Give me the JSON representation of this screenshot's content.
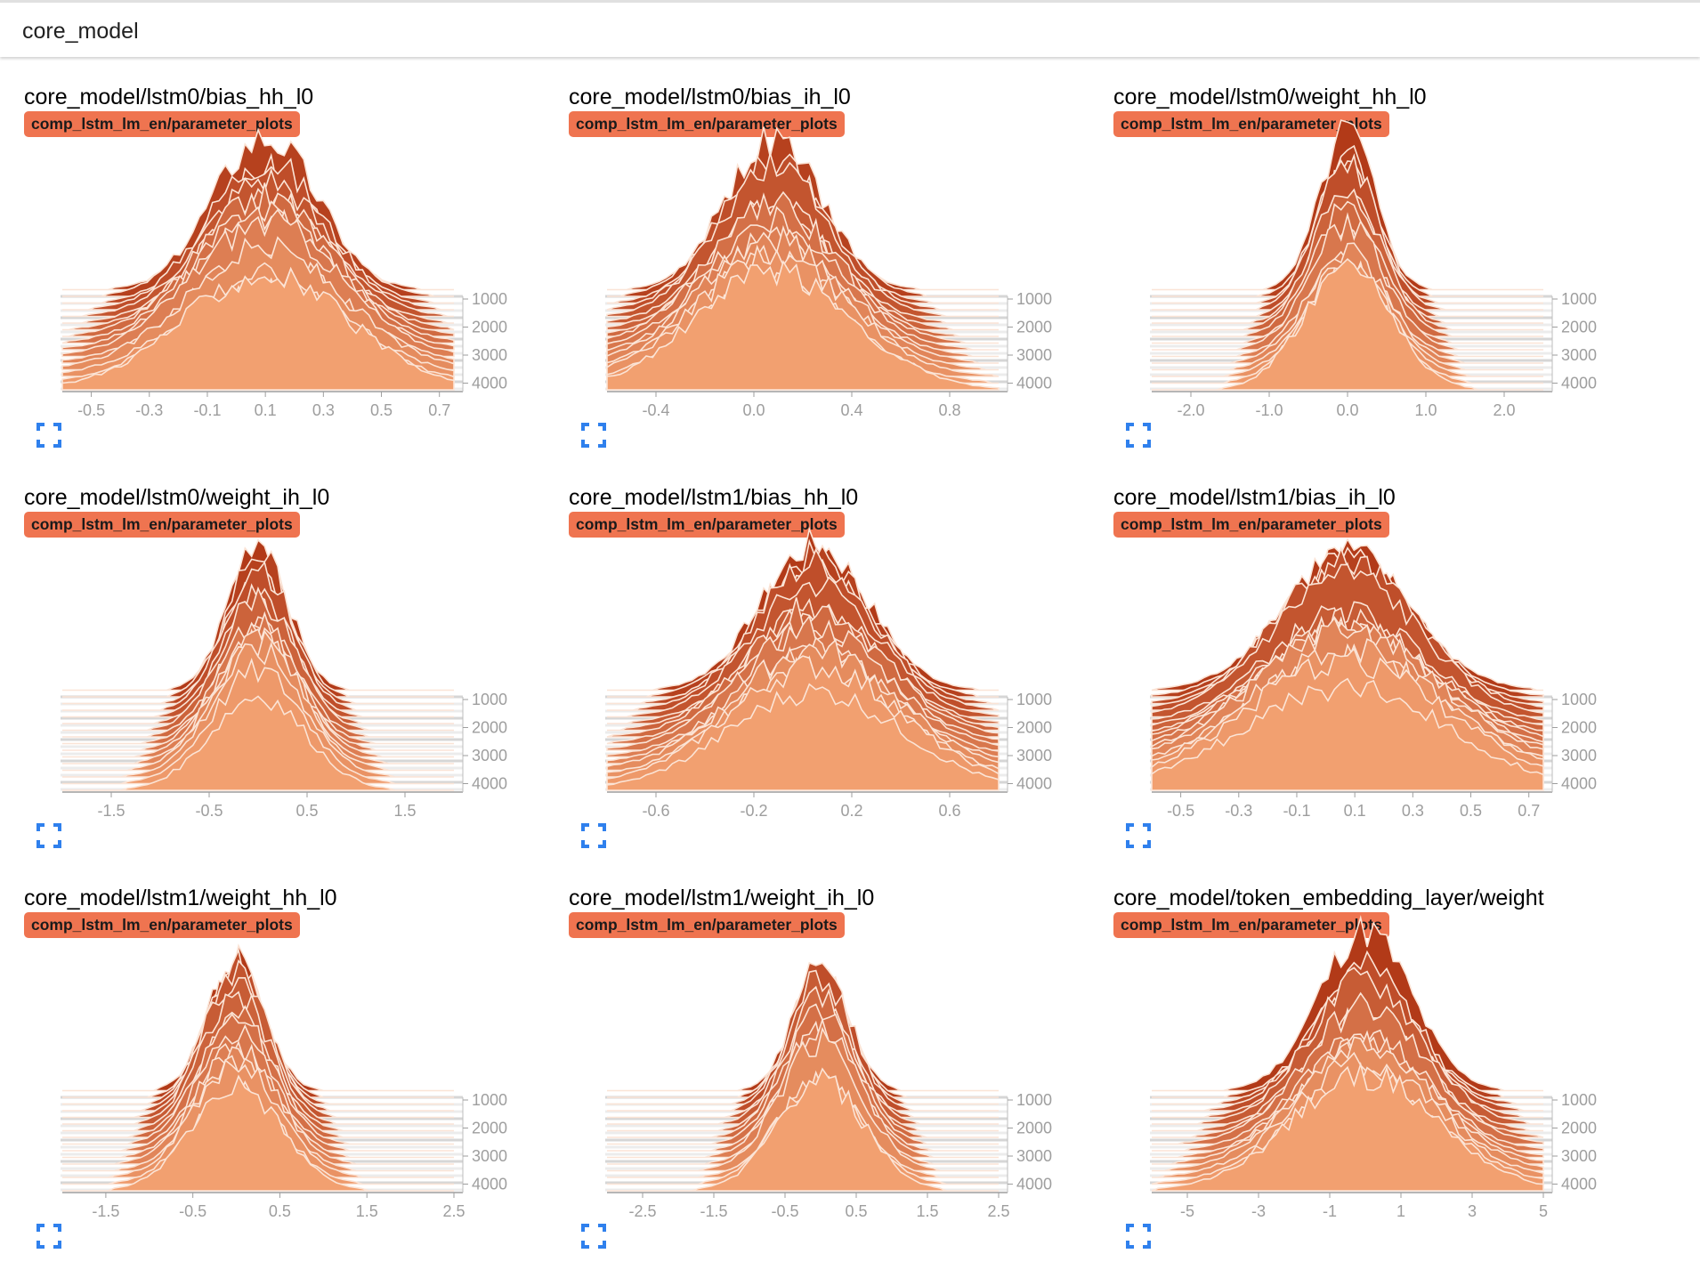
{
  "header": {
    "title": "core_model"
  },
  "icons": {
    "expand": "fullscreen-icon"
  },
  "colors": {
    "tag": "#ef7450",
    "ridge_dark": "#b23a18",
    "ridge_light": "#f2a070",
    "ridge_outline": "#fbe4d6",
    "axis": "#9e9e9e"
  },
  "charts": [
    {
      "title": "core_model/lstm0/bias_hh_l0",
      "tag": "comp_lstm_lm_en/parameter_plots",
      "chart_data": {
        "type": "area",
        "xlabels": [
          "-0.5",
          "-0.3",
          "-0.1",
          "0.1",
          "0.3",
          "0.5",
          "0.7"
        ],
        "xlim": [
          -0.6,
          0.75
        ],
        "steps": [
          "1000",
          "2000",
          "3000",
          "4000"
        ],
        "peak": 0.1,
        "spread": 0.18
      }
    },
    {
      "title": "core_model/lstm0/bias_ih_l0",
      "tag": "comp_lstm_lm_en/parameter_plots",
      "chart_data": {
        "type": "area",
        "xlabels": [
          "-0.4",
          "0.0",
          "0.4",
          "0.8"
        ],
        "xlim": [
          -0.6,
          1.0
        ],
        "steps": [
          "1000",
          "2000",
          "3000",
          "4000"
        ],
        "peak": 0.08,
        "spread": 0.2
      }
    },
    {
      "title": "core_model/lstm0/weight_hh_l0",
      "tag": "comp_lstm_lm_en/parameter_plots",
      "chart_data": {
        "type": "area",
        "xlabels": [
          "-2.0",
          "-1.0",
          "0.0",
          "1.0",
          "2.0"
        ],
        "xlim": [
          -2.5,
          2.5
        ],
        "steps": [
          "1000",
          "2000",
          "3000",
          "4000"
        ],
        "peak": 0.0,
        "spread": 0.35
      }
    },
    {
      "title": "core_model/lstm0/weight_ih_l0",
      "tag": "comp_lstm_lm_en/parameter_plots",
      "chart_data": {
        "type": "area",
        "xlabels": [
          "-1.5",
          "-0.5",
          "0.5",
          "1.5"
        ],
        "xlim": [
          -2.0,
          2.0
        ],
        "steps": [
          "1000",
          "2000",
          "3000",
          "4000"
        ],
        "peak": 0.0,
        "spread": 0.3
      }
    },
    {
      "title": "core_model/lstm1/bias_hh_l0",
      "tag": "comp_lstm_lm_en/parameter_plots",
      "chart_data": {
        "type": "area",
        "xlabels": [
          "-0.6",
          "-0.2",
          "0.2",
          "0.6"
        ],
        "xlim": [
          -0.8,
          0.8
        ],
        "steps": [
          "1000",
          "2000",
          "3000",
          "4000"
        ],
        "peak": 0.05,
        "spread": 0.22
      }
    },
    {
      "title": "core_model/lstm1/bias_ih_l0",
      "tag": "comp_lstm_lm_en/parameter_plots",
      "chart_data": {
        "type": "area",
        "xlabels": [
          "-0.5",
          "-0.3",
          "-0.1",
          "0.1",
          "0.3",
          "0.5",
          "0.7"
        ],
        "xlim": [
          -0.6,
          0.75
        ],
        "steps": [
          "1000",
          "2000",
          "3000",
          "4000"
        ],
        "peak": 0.07,
        "spread": 0.22
      }
    },
    {
      "title": "core_model/lstm1/weight_hh_l0",
      "tag": "comp_lstm_lm_en/parameter_plots",
      "chart_data": {
        "type": "area",
        "xlabels": [
          "-1.5",
          "-0.5",
          "0.5",
          "1.5",
          "2.5"
        ],
        "xlim": [
          -2.0,
          2.5
        ],
        "steps": [
          "1000",
          "2000",
          "3000",
          "4000"
        ],
        "peak": 0.0,
        "spread": 0.32
      }
    },
    {
      "title": "core_model/lstm1/weight_ih_l0",
      "tag": "comp_lstm_lm_en/parameter_plots",
      "chart_data": {
        "type": "area",
        "xlabels": [
          "-2.5",
          "-1.5",
          "-0.5",
          "0.5",
          "1.5",
          "2.5"
        ],
        "xlim": [
          -3.0,
          2.5
        ],
        "steps": [
          "1000",
          "2000",
          "3000",
          "4000"
        ],
        "peak": 0.0,
        "spread": 0.38
      }
    },
    {
      "title": "core_model/token_embedding_layer/weight",
      "tag": "comp_lstm_lm_en/parameter_plots",
      "chart_data": {
        "type": "area",
        "xlabels": [
          "-5",
          "-3",
          "-1",
          "1",
          "3",
          "5"
        ],
        "xlim": [
          -6,
          5
        ],
        "steps": [
          "1000",
          "2000",
          "3000",
          "4000"
        ],
        "peak": 0.0,
        "spread": 1.3
      }
    }
  ]
}
